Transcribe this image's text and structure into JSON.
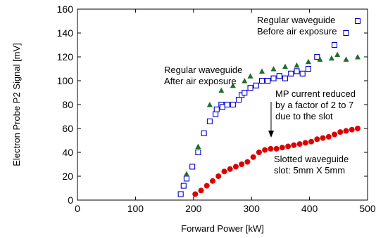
{
  "chart_data": {
    "type": "scatter",
    "xlabel": "Forward Power [kW]",
    "ylabel": "Electron Probe P2 Signal [mV]",
    "xlim": [
      0,
      500
    ],
    "ylim": [
      0,
      160
    ],
    "x_ticks": [
      0,
      100,
      200,
      300,
      400,
      500
    ],
    "y_ticks": [
      0,
      20,
      40,
      60,
      80,
      100,
      120,
      140,
      160
    ],
    "x_tick_labels": [
      "0",
      "100",
      "200",
      "300",
      "400",
      "500"
    ],
    "y_tick_labels": [
      "0",
      "20",
      "40",
      "60",
      "80",
      "100",
      "120",
      "140",
      "160"
    ],
    "grid": false,
    "series": [
      {
        "marker": "open-square",
        "color": "#0000cc",
        "points": [
          [
            178,
            5
          ],
          [
            183,
            12
          ],
          [
            188,
            18
          ],
          [
            198,
            28
          ],
          [
            208,
            40
          ],
          [
            218,
            56
          ],
          [
            228,
            66
          ],
          [
            238,
            72
          ],
          [
            240,
            76
          ],
          [
            248,
            80
          ],
          [
            250,
            78
          ],
          [
            258,
            80
          ],
          [
            268,
            80
          ],
          [
            278,
            84
          ],
          [
            283,
            88
          ],
          [
            288,
            90
          ],
          [
            298,
            94
          ],
          [
            308,
            96
          ],
          [
            318,
            100
          ],
          [
            328,
            100
          ],
          [
            338,
            102
          ],
          [
            348,
            104
          ],
          [
            358,
            102
          ],
          [
            368,
            106
          ],
          [
            378,
            108
          ],
          [
            388,
            106
          ],
          [
            398,
            110
          ],
          [
            413,
            120
          ],
          [
            443,
            130
          ],
          [
            463,
            140
          ],
          [
            483,
            150
          ]
        ]
      },
      {
        "marker": "filled-triangle",
        "color": "#1f6e2a",
        "points": [
          [
            188,
            22
          ],
          [
            208,
            45
          ],
          [
            228,
            80
          ],
          [
            248,
            92
          ],
          [
            268,
            96
          ],
          [
            288,
            100
          ],
          [
            298,
            104
          ],
          [
            318,
            108
          ],
          [
            338,
            110
          ],
          [
            358,
            112
          ],
          [
            378,
            113
          ],
          [
            398,
            116
          ],
          [
            418,
            118
          ],
          [
            438,
            119
          ],
          [
            463,
            118
          ],
          [
            448,
            122
          ],
          [
            483,
            120
          ]
        ]
      },
      {
        "marker": "filled-circle",
        "color": "#dd0000",
        "points": [
          [
            203,
            5
          ],
          [
            213,
            8
          ],
          [
            223,
            12
          ],
          [
            233,
            16
          ],
          [
            243,
            20
          ],
          [
            253,
            24
          ],
          [
            263,
            26
          ],
          [
            273,
            28
          ],
          [
            283,
            30
          ],
          [
            293,
            32
          ],
          [
            303,
            36
          ],
          [
            313,
            40
          ],
          [
            323,
            42
          ],
          [
            333,
            43
          ],
          [
            343,
            43
          ],
          [
            353,
            44
          ],
          [
            363,
            45
          ],
          [
            373,
            46
          ],
          [
            383,
            47
          ],
          [
            393,
            48
          ],
          [
            403,
            49
          ],
          [
            413,
            51
          ],
          [
            423,
            52
          ],
          [
            433,
            53
          ],
          [
            443,
            55
          ],
          [
            453,
            57
          ],
          [
            463,
            58
          ],
          [
            473,
            59
          ],
          [
            483,
            60
          ]
        ]
      }
    ],
    "annotations": [
      {
        "lines": [
          "Regular waveguide",
          "Before air exposure"
        ]
      },
      {
        "lines": [
          "Regular waveguide",
          "After air exposure"
        ]
      },
      {
        "lines": [
          "MP current reduced",
          "by a factor of 2 to 7",
          "due to the slot"
        ]
      },
      {
        "lines": [
          "Slotted waveguide",
          "slot: 5mm X 5mm"
        ]
      }
    ]
  }
}
